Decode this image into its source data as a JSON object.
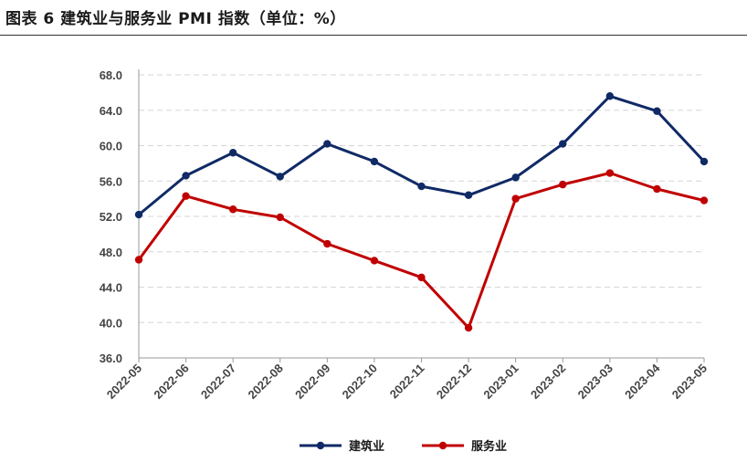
{
  "title": "图表 6 建筑业与服务业 PMI 指数（单位：%）",
  "chart_data": {
    "type": "line",
    "title": "图表 6 建筑业与服务业 PMI 指数（单位：%）",
    "xlabel": "",
    "ylabel": "",
    "ylim": [
      36.0,
      68.0
    ],
    "ytick_step": 4.0,
    "yticks": [
      "36.0",
      "40.0",
      "44.0",
      "48.0",
      "52.0",
      "56.0",
      "60.0",
      "64.0",
      "68.0"
    ],
    "grid": "horizontal-dashed",
    "legend": "bottom-center",
    "categories": [
      "2022-05",
      "2022-06",
      "2022-07",
      "2022-08",
      "2022-09",
      "2022-10",
      "2022-11",
      "2022-12",
      "2023-01",
      "2023-02",
      "2023-03",
      "2023-04",
      "2023-05"
    ],
    "series": [
      {
        "name": "建筑业",
        "color": "#102A66",
        "values": [
          52.2,
          56.6,
          59.2,
          56.5,
          60.2,
          58.2,
          55.4,
          54.4,
          56.4,
          60.2,
          65.6,
          63.9,
          58.2
        ]
      },
      {
        "name": "服务业",
        "color": "#C00000",
        "values": [
          47.1,
          54.3,
          52.8,
          51.9,
          48.9,
          47.0,
          45.1,
          39.4,
          54.0,
          55.6,
          56.9,
          55.1,
          53.8
        ]
      }
    ]
  }
}
